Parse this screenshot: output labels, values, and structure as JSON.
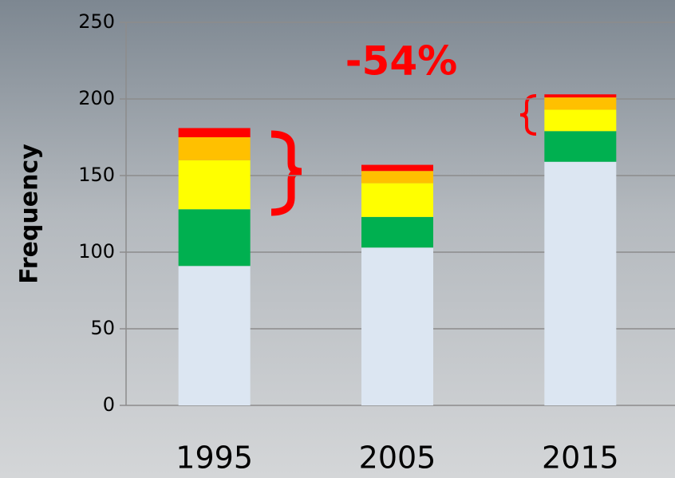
{
  "chart_data": {
    "type": "stacked_bar",
    "y_label": "Frequency",
    "annotation": "-54%",
    "categories": [
      "1995",
      "2005",
      "2015"
    ],
    "series": [
      {
        "color": "#dce6f2",
        "values": [
          91,
          103,
          159
        ]
      },
      {
        "color": "#00b050",
        "values": [
          37,
          20,
          20
        ]
      },
      {
        "color": "#ffff00",
        "values": [
          32,
          22,
          14
        ]
      },
      {
        "color": "#ffc000",
        "values": [
          15,
          8,
          8
        ]
      },
      {
        "color": "#ff0000",
        "values": [
          6,
          4,
          2
        ]
      }
    ],
    "ylim": [
      0,
      250
    ],
    "yticks": [
      0,
      50,
      100,
      150,
      200,
      250
    ],
    "grid": true
  }
}
